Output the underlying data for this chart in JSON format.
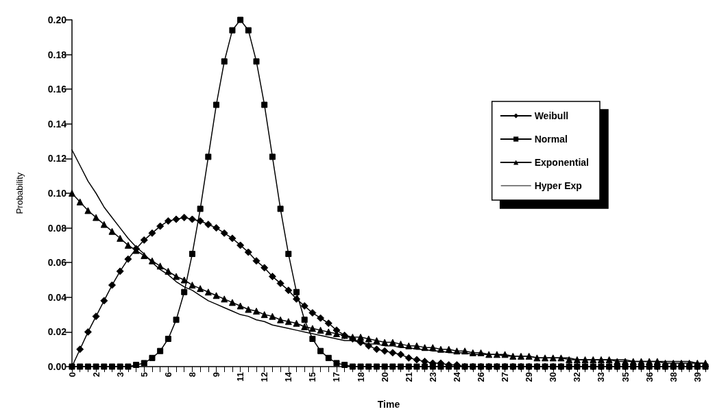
{
  "chart_data": {
    "type": "line",
    "xlabel": "Time",
    "ylabel": "Probability",
    "categories": [
      "0",
      null,
      null,
      "2",
      null,
      null,
      "3",
      null,
      null,
      "5",
      null,
      null,
      "6",
      null,
      null,
      "8",
      null,
      null,
      "9",
      null,
      null,
      "11",
      null,
      null,
      "12",
      null,
      null,
      "14",
      null,
      null,
      "15",
      null,
      null,
      "17",
      null,
      null,
      "18",
      null,
      null,
      "20",
      null,
      null,
      "21",
      null,
      null,
      "23",
      null,
      null,
      "24",
      null,
      null,
      "26",
      null,
      null,
      "27",
      null,
      null,
      "29",
      null,
      null,
      "30",
      null,
      null,
      "32",
      null,
      null,
      "33",
      null,
      null,
      "35",
      null,
      null,
      "36",
      null,
      null,
      "38",
      null,
      null,
      "39",
      null
    ],
    "ylim": [
      0,
      0.2
    ],
    "yticks": [
      {
        "value": 0,
        "label": "0.00"
      },
      {
        "value": 0.02,
        "label": "0.02"
      },
      {
        "value": 0.04,
        "label": "0.04"
      },
      {
        "value": 0.06,
        "label": "0.06"
      },
      {
        "value": 0.08,
        "label": "0.08"
      },
      {
        "value": 0.1,
        "label": "0.10"
      },
      {
        "value": 0.12,
        "label": "0.12"
      },
      {
        "value": 0.14,
        "label": "0.14"
      },
      {
        "value": 0.16,
        "label": "0.16"
      },
      {
        "value": 0.18,
        "label": "0.18"
      },
      {
        "value": 0.2,
        "label": "0.20"
      }
    ],
    "grid": false,
    "legend": "top right",
    "line_style": "solid",
    "series": [
      {
        "name": "Weibull",
        "color": "#000000",
        "marker": "diamond",
        "values": [
          0,
          0.01,
          0.02,
          0.029,
          0.038,
          0.047,
          0.055,
          0.062,
          0.068,
          0.073,
          0.077,
          0.081,
          0.084,
          0.085,
          0.086,
          0.085,
          0.084,
          0.082,
          0.08,
          0.077,
          0.074,
          0.07,
          0.066,
          0.061,
          0.057,
          0.052,
          0.048,
          0.044,
          0.039,
          0.035,
          0.031,
          0.028,
          0.025,
          0.021,
          0.018,
          0.016,
          0.014,
          0.012,
          0.01,
          0.009,
          0.008,
          0.007,
          0.005,
          0.004,
          0.003,
          0.002,
          0.002,
          0.001,
          0.001,
          0,
          0,
          0,
          0,
          0,
          0,
          0,
          0,
          0,
          0,
          0,
          0,
          0,
          0,
          0,
          0,
          0,
          0,
          0,
          0,
          0,
          0,
          0,
          0,
          0,
          0,
          0,
          0,
          0,
          0,
          0
        ]
      },
      {
        "name": "Normal",
        "color": "#000000",
        "marker": "square",
        "values": [
          0,
          0,
          0,
          0,
          0,
          0,
          0,
          0,
          0.001,
          0.002,
          0.005,
          0.009,
          0.016,
          0.027,
          0.043,
          0.065,
          0.091,
          0.121,
          0.151,
          0.176,
          0.194,
          0.2,
          0.194,
          0.176,
          0.151,
          0.121,
          0.091,
          0.065,
          0.043,
          0.027,
          0.016,
          0.009,
          0.005,
          0.002,
          0.001,
          0,
          0,
          0,
          0,
          0,
          0,
          0,
          0,
          0,
          0,
          0,
          0,
          0,
          0,
          0,
          0,
          0,
          0,
          0,
          0,
          0,
          0,
          0,
          0,
          0,
          0,
          0,
          0,
          0,
          0,
          0,
          0,
          0,
          0,
          0,
          0,
          0,
          0,
          0,
          0,
          0,
          0,
          0,
          0,
          0
        ]
      },
      {
        "name": "Exponential",
        "color": "#000000",
        "marker": "triangle",
        "values": [
          0.1,
          0.095,
          0.09,
          0.086,
          0.082,
          0.078,
          0.074,
          0.07,
          0.067,
          0.064,
          0.061,
          0.058,
          0.055,
          0.052,
          0.05,
          0.047,
          0.045,
          0.043,
          0.041,
          0.039,
          0.037,
          0.035,
          0.033,
          0.032,
          0.03,
          0.029,
          0.027,
          0.026,
          0.025,
          0.023,
          0.022,
          0.021,
          0.02,
          0.019,
          0.018,
          0.017,
          0.017,
          0.016,
          0.015,
          0.014,
          0.014,
          0.013,
          0.012,
          0.012,
          0.011,
          0.011,
          0.01,
          0.01,
          0.009,
          0.009,
          0.008,
          0.008,
          0.007,
          0.007,
          0.007,
          0.006,
          0.006,
          0.006,
          0.005,
          0.005,
          0.005,
          0.005,
          0.004,
          0.004,
          0.004,
          0.004,
          0.004,
          0.004,
          0.003,
          0.003,
          0.003,
          0.003,
          0.003,
          0.003,
          0.002,
          0.002,
          0.002,
          0.002,
          0.002,
          0.002
        ]
      },
      {
        "name": "Hyper Exp",
        "color": "#000000",
        "marker": "none",
        "values": [
          0.125,
          0.116,
          0.107,
          0.1,
          0.092,
          0.086,
          0.08,
          0.074,
          0.069,
          0.065,
          0.06,
          0.056,
          0.053,
          0.049,
          0.046,
          0.044,
          0.041,
          0.038,
          0.036,
          0.034,
          0.032,
          0.03,
          0.029,
          0.027,
          0.026,
          0.024,
          0.023,
          0.022,
          0.021,
          0.02,
          0.019,
          0.018,
          0.017,
          0.016,
          0.015,
          0.015,
          0.014,
          0.013,
          0.013,
          0.012,
          0.012,
          0.011,
          0.011,
          0.01,
          0.01,
          0.009,
          0.009,
          0.008,
          0.008,
          0.008,
          0.007,
          0.007,
          0.007,
          0.007,
          0.006,
          0.006,
          0.006,
          0.006,
          0.005,
          0.005,
          0.005,
          0.005,
          0.005,
          0.004,
          0.004,
          0.004,
          0.004,
          0.004,
          0.004,
          0.004,
          0.003,
          0.003,
          0.003,
          0.003,
          0.003,
          0.003,
          0.003,
          0.003,
          0.002,
          0.002
        ]
      }
    ]
  }
}
